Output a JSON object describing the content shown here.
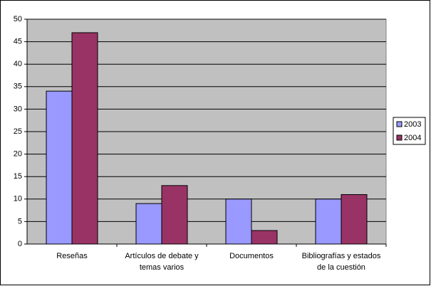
{
  "chart_data": {
    "type": "bar",
    "categories": [
      "Reseñas",
      "Artículos de debate y temas varios",
      "Documentos",
      "Bibliografías y estados de la cuestión"
    ],
    "series": [
      {
        "name": "2003",
        "color": "#9999ff",
        "values": [
          34,
          9,
          10,
          10
        ]
      },
      {
        "name": "2004",
        "color": "#993366",
        "values": [
          47,
          13,
          3,
          11
        ]
      }
    ],
    "ylim": [
      0,
      50
    ],
    "yticks": [
      0,
      5,
      10,
      15,
      20,
      25,
      30,
      35,
      40,
      45,
      50
    ],
    "grid": true,
    "legend": "right",
    "plot_background": "#c0c0c0"
  }
}
